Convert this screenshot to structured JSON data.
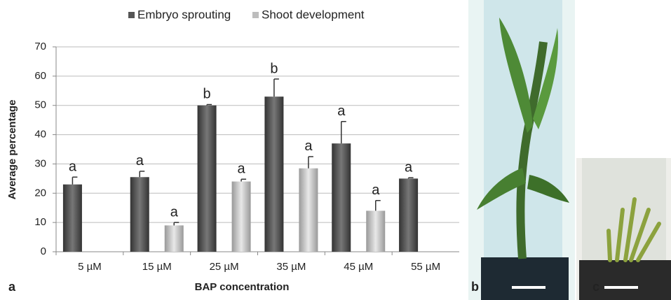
{
  "chart_data": {
    "type": "bar",
    "panel_label": "a",
    "y_label": "Average percentage",
    "x_label": "BAP concentration",
    "categories": [
      "5  µM",
      "15 µM",
      "25 µM",
      "35 µM",
      "45 µM",
      "55 µM"
    ],
    "series": [
      {
        "name": "Embryo sprouting",
        "color": "#555555",
        "values": [
          23,
          25.5,
          50,
          53,
          37,
          25
        ],
        "errors": [
          2.5,
          2,
          0.3,
          6,
          7.5,
          0.3
        ],
        "letters": [
          "a",
          "a",
          "b",
          "b",
          "a",
          "a"
        ]
      },
      {
        "name": "Shoot development",
        "color": "#bdbdbd",
        "values": [
          null,
          9,
          24,
          28.5,
          14,
          null
        ],
        "errors": [
          null,
          1,
          0.8,
          4,
          3.5,
          null
        ],
        "letters": [
          null,
          "a",
          "a",
          "a",
          "a",
          null
        ]
      }
    ],
    "ylim": [
      0,
      70
    ],
    "yticks": [
      0,
      10,
      20,
      30,
      40,
      50,
      60,
      70
    ],
    "grid": true
  },
  "photos": [
    {
      "label": "b"
    },
    {
      "label": "c"
    }
  ]
}
